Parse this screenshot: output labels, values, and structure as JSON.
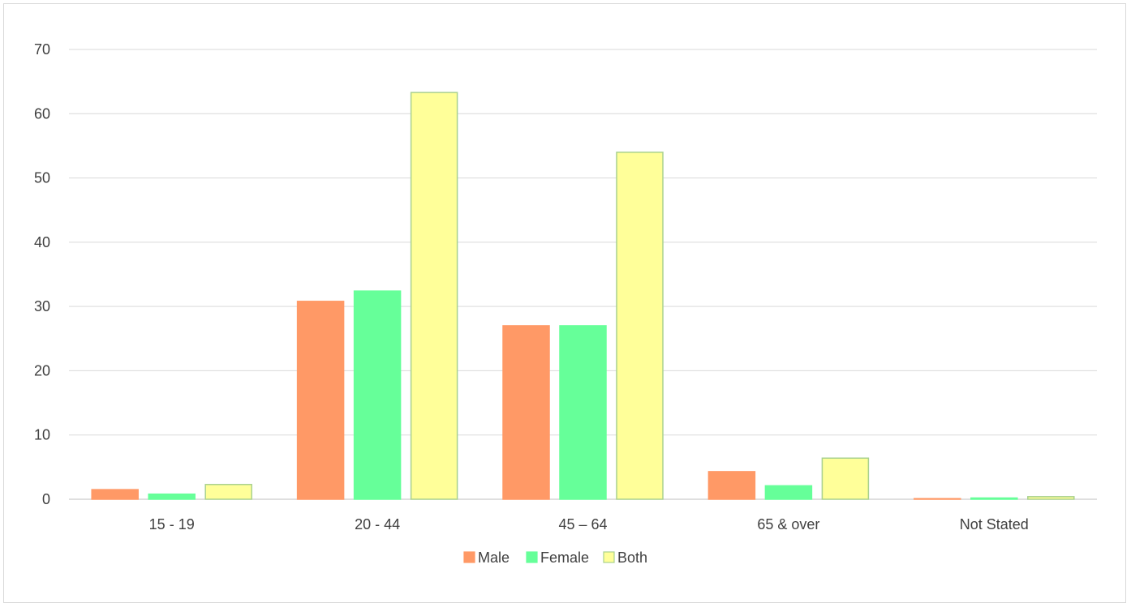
{
  "chart_data": {
    "type": "bar",
    "categories": [
      "15 - 19",
      "20 - 44",
      "45 – 64",
      "65 & over",
      "Not Stated"
    ],
    "series": [
      {
        "name": "Male",
        "values": [
          1.5,
          30.8,
          27.0,
          4.3,
          0.1
        ],
        "color": "#ff9966",
        "stroke": "#ff9966"
      },
      {
        "name": "Female",
        "values": [
          0.8,
          32.4,
          27.0,
          2.1,
          0.2
        ],
        "color": "#66ff99",
        "stroke": "#66ff99"
      },
      {
        "name": "Both",
        "values": [
          2.3,
          63.3,
          54.0,
          6.4,
          0.4
        ],
        "color": "#ffff99",
        "stroke": "#a9d18e"
      }
    ],
    "y_ticks": [
      "0",
      "10",
      "20",
      "30",
      "40",
      "50",
      "60",
      "70"
    ],
    "ylim": [
      0,
      70
    ],
    "title": "",
    "xlabel": "",
    "ylabel": "",
    "grid": true,
    "legend_position": "bottom"
  }
}
